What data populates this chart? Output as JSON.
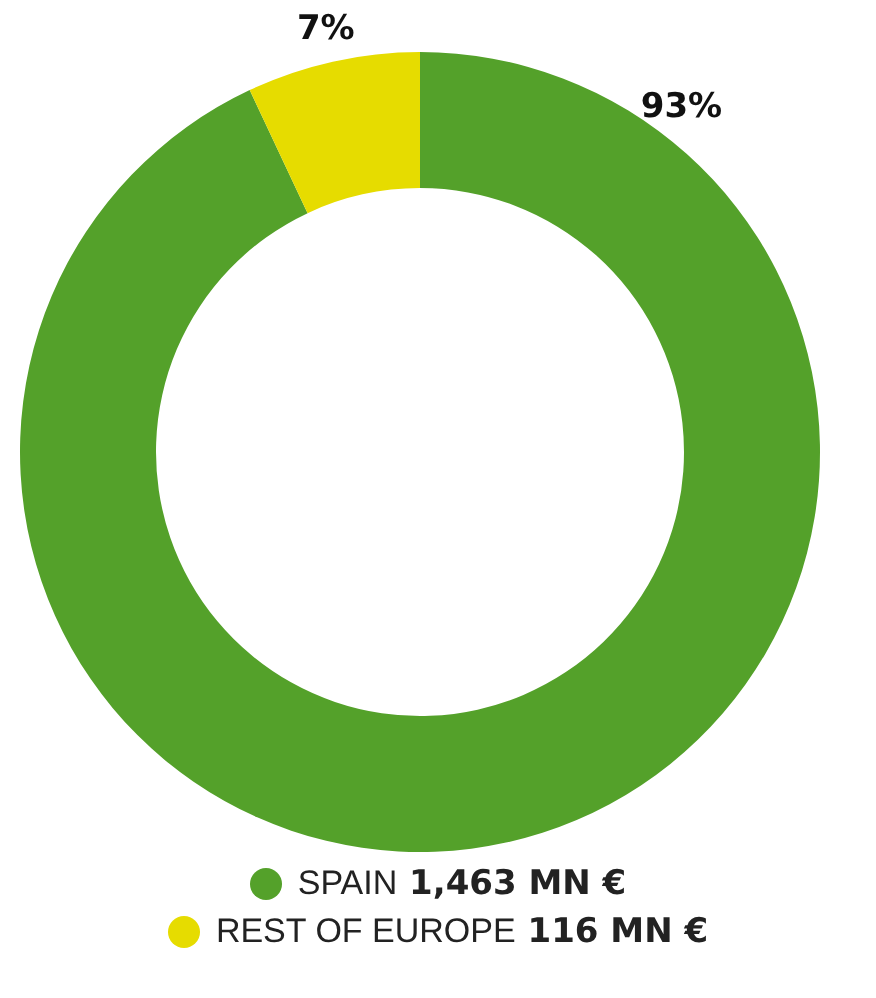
{
  "chart_data": {
    "type": "donut",
    "categories": [
      "SPAIN 1,463 MN €",
      "REST OF EUROPE 116 MN €"
    ],
    "values": [
      93,
      7
    ],
    "value_labels": [
      "93%",
      "7%"
    ],
    "colors": [
      "#54a12a",
      "#e6dc00"
    ],
    "legend": "bottom"
  }
}
